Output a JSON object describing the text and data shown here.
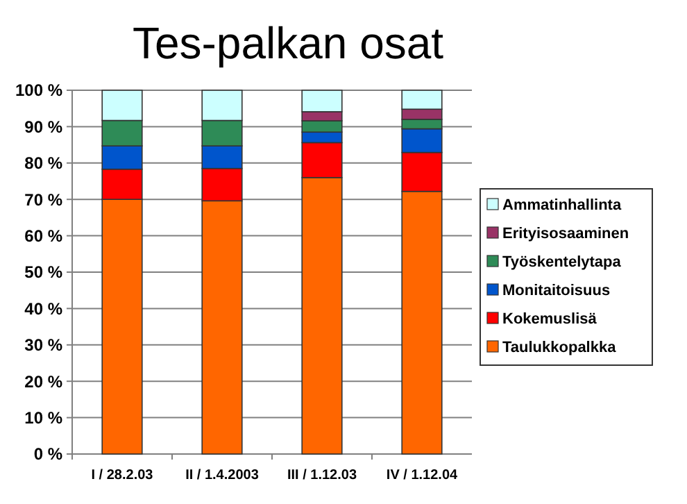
{
  "chart_data": {
    "type": "bar",
    "title": "Tes-palkan osat",
    "stacked": true,
    "categories": [
      "I / 28.2.03",
      "II / 1.4.2003",
      "III / 1.12.03",
      "IV / 1.12.04"
    ],
    "series": [
      {
        "name": "Taulukkopalkka",
        "color": "#ff6600",
        "values": [
          70,
          69.6,
          76,
          72.2
        ]
      },
      {
        "name": "Kokemuslisä",
        "color": "#ff0000",
        "values": [
          8.3,
          8.9,
          9.6,
          10.7
        ]
      },
      {
        "name": "Monitaitoisuus",
        "color": "#0055cc",
        "values": [
          6.4,
          6.2,
          2.9,
          6.5
        ]
      },
      {
        "name": "Työskentelytapa",
        "color": "#2e8b57",
        "values": [
          7,
          7,
          3.1,
          2.6
        ]
      },
      {
        "name": "Erityisosaaminen",
        "color": "#993366",
        "values": [
          0,
          0,
          2.5,
          2.8
        ]
      },
      {
        "name": "Ammatinhallinta",
        "color": "#ccffff",
        "values": [
          8.3,
          8.3,
          5.9,
          5.2
        ]
      }
    ],
    "ylim": [
      0,
      100
    ],
    "yticks": [
      {
        "value": 0,
        "label": "0 %"
      },
      {
        "value": 10,
        "label": "10 %"
      },
      {
        "value": 20,
        "label": "20 %"
      },
      {
        "value": 30,
        "label": "30 %"
      },
      {
        "value": 40,
        "label": "40 %"
      },
      {
        "value": 50,
        "label": "50 %"
      },
      {
        "value": 60,
        "label": "60 %"
      },
      {
        "value": 70,
        "label": "70 %"
      },
      {
        "value": 80,
        "label": "80 %"
      },
      {
        "value": 90,
        "label": "90 %"
      },
      {
        "value": 100,
        "label": "100 %"
      }
    ],
    "grid": "y",
    "legend": "right"
  }
}
